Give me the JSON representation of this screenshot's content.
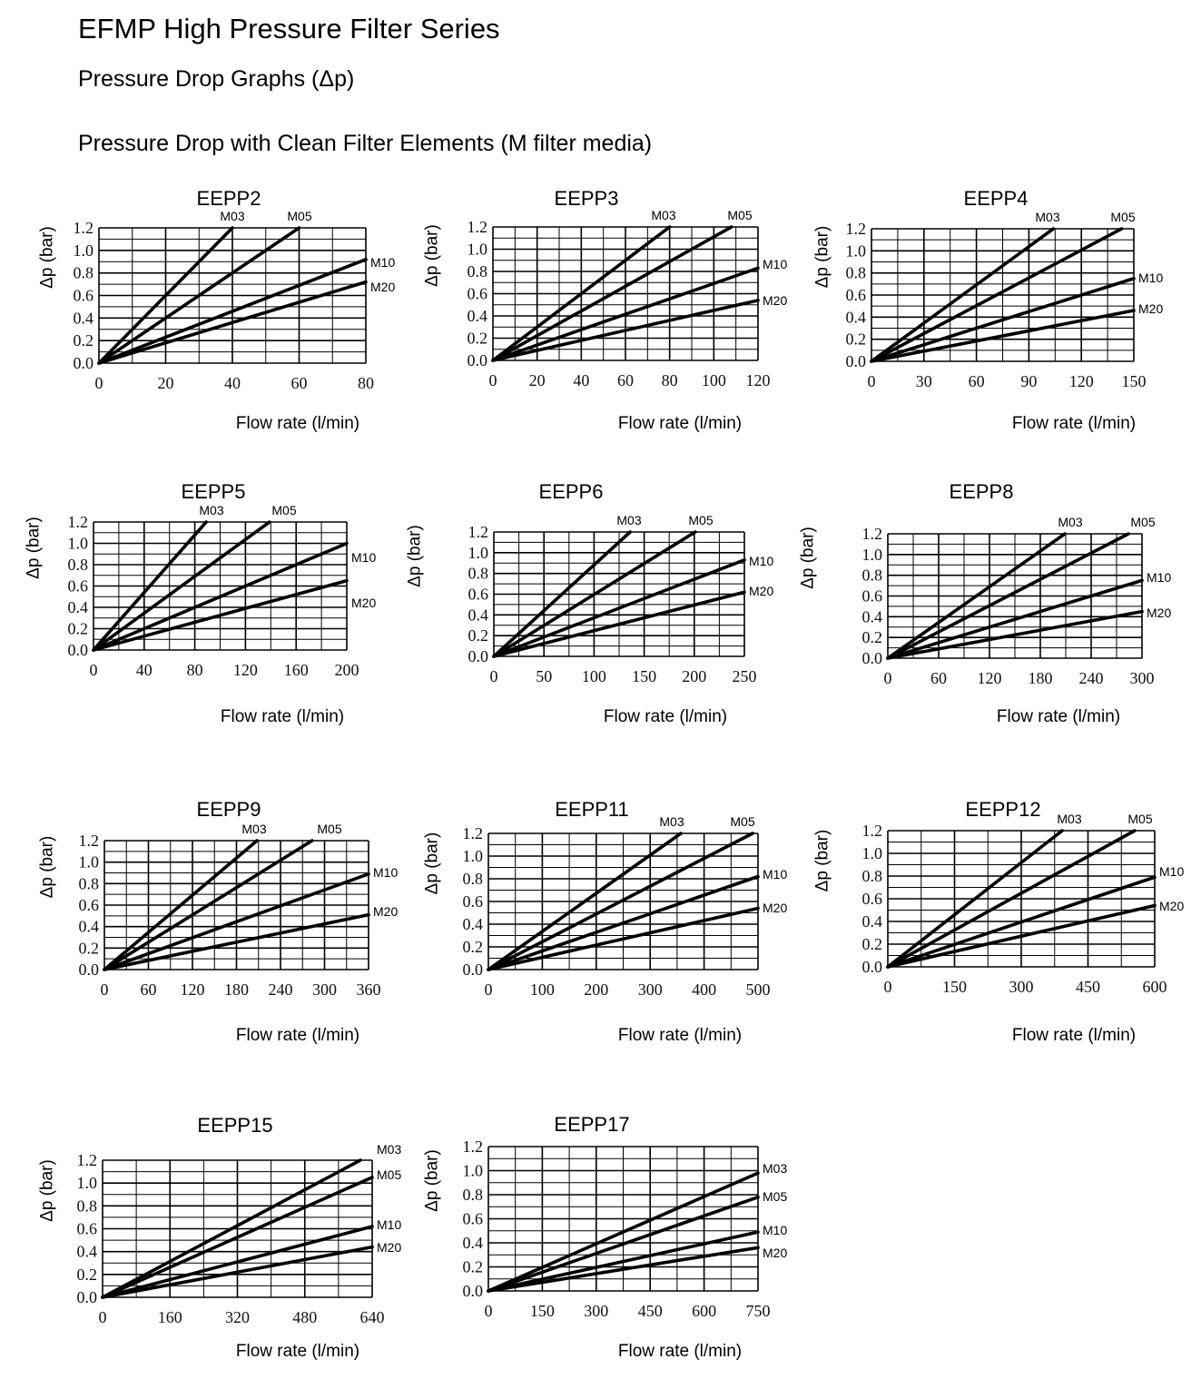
{
  "header": {
    "title": "EFMP High Pressure Filter Series",
    "subtitle": "Pressure Drop Graphs (Δp)",
    "section": "Pressure Drop with Clean Filter Elements (M filter media)"
  },
  "colors": {
    "line": "#000000",
    "grid": "#000000",
    "text": "#000000"
  },
  "chart_data": [
    {
      "type": "line",
      "title": "EEPP2",
      "xlabel": "Flow rate (l/min)",
      "ylabel": "Δp (bar)",
      "xlim": [
        0,
        80
      ],
      "ylim": [
        0,
        1.2
      ],
      "grid": true,
      "xticks": [
        "0",
        "20",
        "40",
        "60",
        "80"
      ],
      "yticks": [
        "0.0",
        "0.2",
        "0.4",
        "0.6",
        "0.8",
        "1.0",
        "1.2"
      ],
      "series": [
        {
          "name": "M03",
          "x": [
            0,
            40
          ],
          "y": [
            0,
            1.2
          ]
        },
        {
          "name": "M05",
          "x": [
            0,
            60
          ],
          "y": [
            0,
            1.2
          ]
        },
        {
          "name": "M10",
          "x": [
            0,
            80
          ],
          "y": [
            0,
            0.92
          ]
        },
        {
          "name": "M20",
          "x": [
            0,
            80
          ],
          "y": [
            0,
            0.72
          ]
        }
      ]
    },
    {
      "type": "line",
      "title": "EEPP3",
      "xlabel": "Flow rate (l/min)",
      "ylabel": "Δp (bar)",
      "xlim": [
        0,
        120
      ],
      "ylim": [
        0,
        1.2
      ],
      "grid": true,
      "xticks": [
        "0",
        "20",
        "40",
        "60",
        "80",
        "100",
        "120"
      ],
      "yticks": [
        "0.0",
        "0.2",
        "0.4",
        "0.6",
        "0.8",
        "1.0",
        "1.2"
      ],
      "series": [
        {
          "name": "M03",
          "x": [
            0,
            80
          ],
          "y": [
            0,
            1.2
          ]
        },
        {
          "name": "M05",
          "x": [
            0,
            108
          ],
          "y": [
            0,
            1.2
          ]
        },
        {
          "name": "M10",
          "x": [
            0,
            120
          ],
          "y": [
            0,
            0.83
          ]
        },
        {
          "name": "M20",
          "x": [
            0,
            120
          ],
          "y": [
            0,
            0.54
          ]
        }
      ]
    },
    {
      "type": "line",
      "title": "EEPP4",
      "xlabel": "Flow rate (l/min)",
      "ylabel": "Δp (bar)",
      "xlim": [
        0,
        150
      ],
      "ylim": [
        0,
        1.2
      ],
      "grid": true,
      "xticks": [
        "0",
        "30",
        "60",
        "90",
        "120",
        "150"
      ],
      "yticks": [
        "0.0",
        "0.2",
        "0.4",
        "0.6",
        "0.8",
        "1.0",
        "1.2"
      ],
      "series": [
        {
          "name": "M03",
          "x": [
            0,
            104
          ],
          "y": [
            0,
            1.2
          ]
        },
        {
          "name": "M05",
          "x": [
            0,
            143
          ],
          "y": [
            0,
            1.2
          ]
        },
        {
          "name": "M10",
          "x": [
            0,
            150
          ],
          "y": [
            0,
            0.75
          ]
        },
        {
          "name": "M20",
          "x": [
            0,
            150
          ],
          "y": [
            0,
            0.46
          ]
        }
      ]
    },
    {
      "type": "line",
      "title": "EEPP5",
      "xlabel": "Flow rate (l/min)",
      "ylabel": "Δp (bar)",
      "xlim": [
        0,
        200
      ],
      "ylim": [
        0,
        1.2
      ],
      "grid": true,
      "xticks": [
        "0",
        "40",
        "80",
        "120",
        "160",
        "200"
      ],
      "yticks": [
        "0.0",
        "0.2",
        "0.4",
        "0.6",
        "0.8",
        "1.0",
        "1.2"
      ],
      "series": [
        {
          "name": "M03",
          "x": [
            0,
            89
          ],
          "y": [
            0,
            1.2
          ]
        },
        {
          "name": "M05",
          "x": [
            0,
            139
          ],
          "y": [
            0,
            1.2
          ]
        },
        {
          "name": "M10",
          "x": [
            0,
            200
          ],
          "y": [
            0,
            1.0
          ]
        },
        {
          "name": "M20",
          "x": [
            0,
            200
          ],
          "y": [
            0,
            0.65
          ]
        }
      ]
    },
    {
      "type": "line",
      "title": "EEPP6",
      "xlabel": "Flow rate (l/min)",
      "ylabel": "Δp (bar)",
      "xlim": [
        0,
        250
      ],
      "ylim": [
        0,
        1.2
      ],
      "grid": true,
      "xticks": [
        "0",
        "50",
        "100",
        "150",
        "200",
        "250"
      ],
      "yticks": [
        "0.0",
        "0.2",
        "0.4",
        "0.6",
        "0.8",
        "1.0",
        "1.2"
      ],
      "series": [
        {
          "name": "M03",
          "x": [
            0,
            136
          ],
          "y": [
            0,
            1.2
          ]
        },
        {
          "name": "M05",
          "x": [
            0,
            201
          ],
          "y": [
            0,
            1.2
          ]
        },
        {
          "name": "M10",
          "x": [
            0,
            250
          ],
          "y": [
            0,
            0.93
          ]
        },
        {
          "name": "M20",
          "x": [
            0,
            250
          ],
          "y": [
            0,
            0.62
          ]
        }
      ]
    },
    {
      "type": "line",
      "title": "EEPP8",
      "xlabel": "Flow rate (l/min)",
      "ylabel": "Δp (bar)",
      "xlim": [
        0,
        300
      ],
      "ylim": [
        0,
        1.2
      ],
      "grid": true,
      "xticks": [
        "0",
        "60",
        "120",
        "180",
        "240",
        "300"
      ],
      "yticks": [
        "0.0",
        "0.2",
        "0.4",
        "0.6",
        "0.8",
        "1.0",
        "1.2"
      ],
      "series": [
        {
          "name": "M03",
          "x": [
            0,
            209
          ],
          "y": [
            0,
            1.2
          ]
        },
        {
          "name": "M05",
          "x": [
            0,
            284
          ],
          "y": [
            0,
            1.2
          ]
        },
        {
          "name": "M10",
          "x": [
            0,
            300
          ],
          "y": [
            0,
            0.75
          ]
        },
        {
          "name": "M20",
          "x": [
            0,
            300
          ],
          "y": [
            0,
            0.45
          ]
        }
      ]
    },
    {
      "type": "line",
      "title": "EEPP9",
      "xlabel": "Flow rate (l/min)",
      "ylabel": "Δp (bar)",
      "xlim": [
        0,
        360
      ],
      "ylim": [
        0,
        1.2
      ],
      "grid": true,
      "xticks": [
        "0",
        "60",
        "120",
        "180",
        "240",
        "300",
        "360"
      ],
      "yticks": [
        "0.0",
        "0.2",
        "0.4",
        "0.6",
        "0.8",
        "1.0",
        "1.2"
      ],
      "series": [
        {
          "name": "M03",
          "x": [
            0,
            208
          ],
          "y": [
            0,
            1.2
          ]
        },
        {
          "name": "M05",
          "x": [
            0,
            283
          ],
          "y": [
            0,
            1.2
          ]
        },
        {
          "name": "M10",
          "x": [
            0,
            360
          ],
          "y": [
            0,
            0.89
          ]
        },
        {
          "name": "M20",
          "x": [
            0,
            360
          ],
          "y": [
            0,
            0.51
          ]
        }
      ]
    },
    {
      "type": "line",
      "title": "EEPP11",
      "xlabel": "Flow rate (l/min)",
      "ylabel": "Δp (bar)",
      "xlim": [
        0,
        500
      ],
      "ylim": [
        0,
        1.2
      ],
      "grid": true,
      "xticks": [
        "0",
        "100",
        "200",
        "300",
        "400",
        "500"
      ],
      "yticks": [
        "0.0",
        "0.2",
        "0.4",
        "0.6",
        "0.8",
        "1.0",
        "1.2"
      ],
      "series": [
        {
          "name": "M03",
          "x": [
            0,
            357
          ],
          "y": [
            0,
            1.2
          ]
        },
        {
          "name": "M05",
          "x": [
            0,
            490
          ],
          "y": [
            0,
            1.2
          ]
        },
        {
          "name": "M10",
          "x": [
            0,
            500
          ],
          "y": [
            0,
            0.82
          ]
        },
        {
          "name": "M20",
          "x": [
            0,
            500
          ],
          "y": [
            0,
            0.54
          ]
        }
      ]
    },
    {
      "type": "line",
      "title": "EEPP12",
      "xlabel": "Flow rate (l/min)",
      "ylabel": "Δp (bar)",
      "xlim": [
        0,
        600
      ],
      "ylim": [
        0,
        1.2
      ],
      "grid": true,
      "xticks": [
        "0",
        "150",
        "300",
        "450",
        "600"
      ],
      "yticks": [
        "0.0",
        "0.2",
        "0.4",
        "0.6",
        "0.8",
        "1.0",
        "1.2"
      ],
      "series": [
        {
          "name": "M03",
          "x": [
            0,
            392
          ],
          "y": [
            0,
            1.2
          ]
        },
        {
          "name": "M05",
          "x": [
            0,
            555
          ],
          "y": [
            0,
            1.2
          ]
        },
        {
          "name": "M10",
          "x": [
            0,
            600
          ],
          "y": [
            0,
            0.79
          ]
        },
        {
          "name": "M20",
          "x": [
            0,
            600
          ],
          "y": [
            0,
            0.54
          ]
        }
      ]
    },
    {
      "type": "line",
      "title": "EEPP15",
      "xlabel": "Flow rate (l/min)",
      "ylabel": "Δp (bar)",
      "xlim": [
        0,
        640
      ],
      "ylim": [
        0,
        1.2
      ],
      "grid": true,
      "xticks": [
        "0",
        "160",
        "320",
        "480",
        "640"
      ],
      "yticks": [
        "0.0",
        "0.2",
        "0.4",
        "0.6",
        "0.8",
        "1.0",
        "1.2"
      ],
      "series": [
        {
          "name": "M03",
          "x": [
            0,
            612
          ],
          "y": [
            0,
            1.2
          ]
        },
        {
          "name": "M05",
          "x": [
            0,
            640
          ],
          "y": [
            0,
            1.05
          ]
        },
        {
          "name": "M10",
          "x": [
            0,
            640
          ],
          "y": [
            0,
            0.62
          ]
        },
        {
          "name": "M20",
          "x": [
            0,
            640
          ],
          "y": [
            0,
            0.44
          ]
        }
      ]
    },
    {
      "type": "line",
      "title": "EEPP17",
      "xlabel": "Flow rate (l/min)",
      "ylabel": "Δp (bar)",
      "xlim": [
        0,
        750
      ],
      "ylim": [
        0,
        1.2
      ],
      "grid": true,
      "xticks": [
        "0",
        "150",
        "300",
        "450",
        "600",
        "750"
      ],
      "yticks": [
        "0.0",
        "0.2",
        "0.4",
        "0.6",
        "0.8",
        "1.0",
        "1.2"
      ],
      "series": [
        {
          "name": "M03",
          "x": [
            0,
            750
          ],
          "y": [
            0,
            0.98
          ]
        },
        {
          "name": "M05",
          "x": [
            0,
            750
          ],
          "y": [
            0,
            0.78
          ]
        },
        {
          "name": "M10",
          "x": [
            0,
            750
          ],
          "y": [
            0,
            0.49
          ]
        },
        {
          "name": "M20",
          "x": [
            0,
            750
          ],
          "y": [
            0,
            0.36
          ]
        }
      ]
    }
  ]
}
